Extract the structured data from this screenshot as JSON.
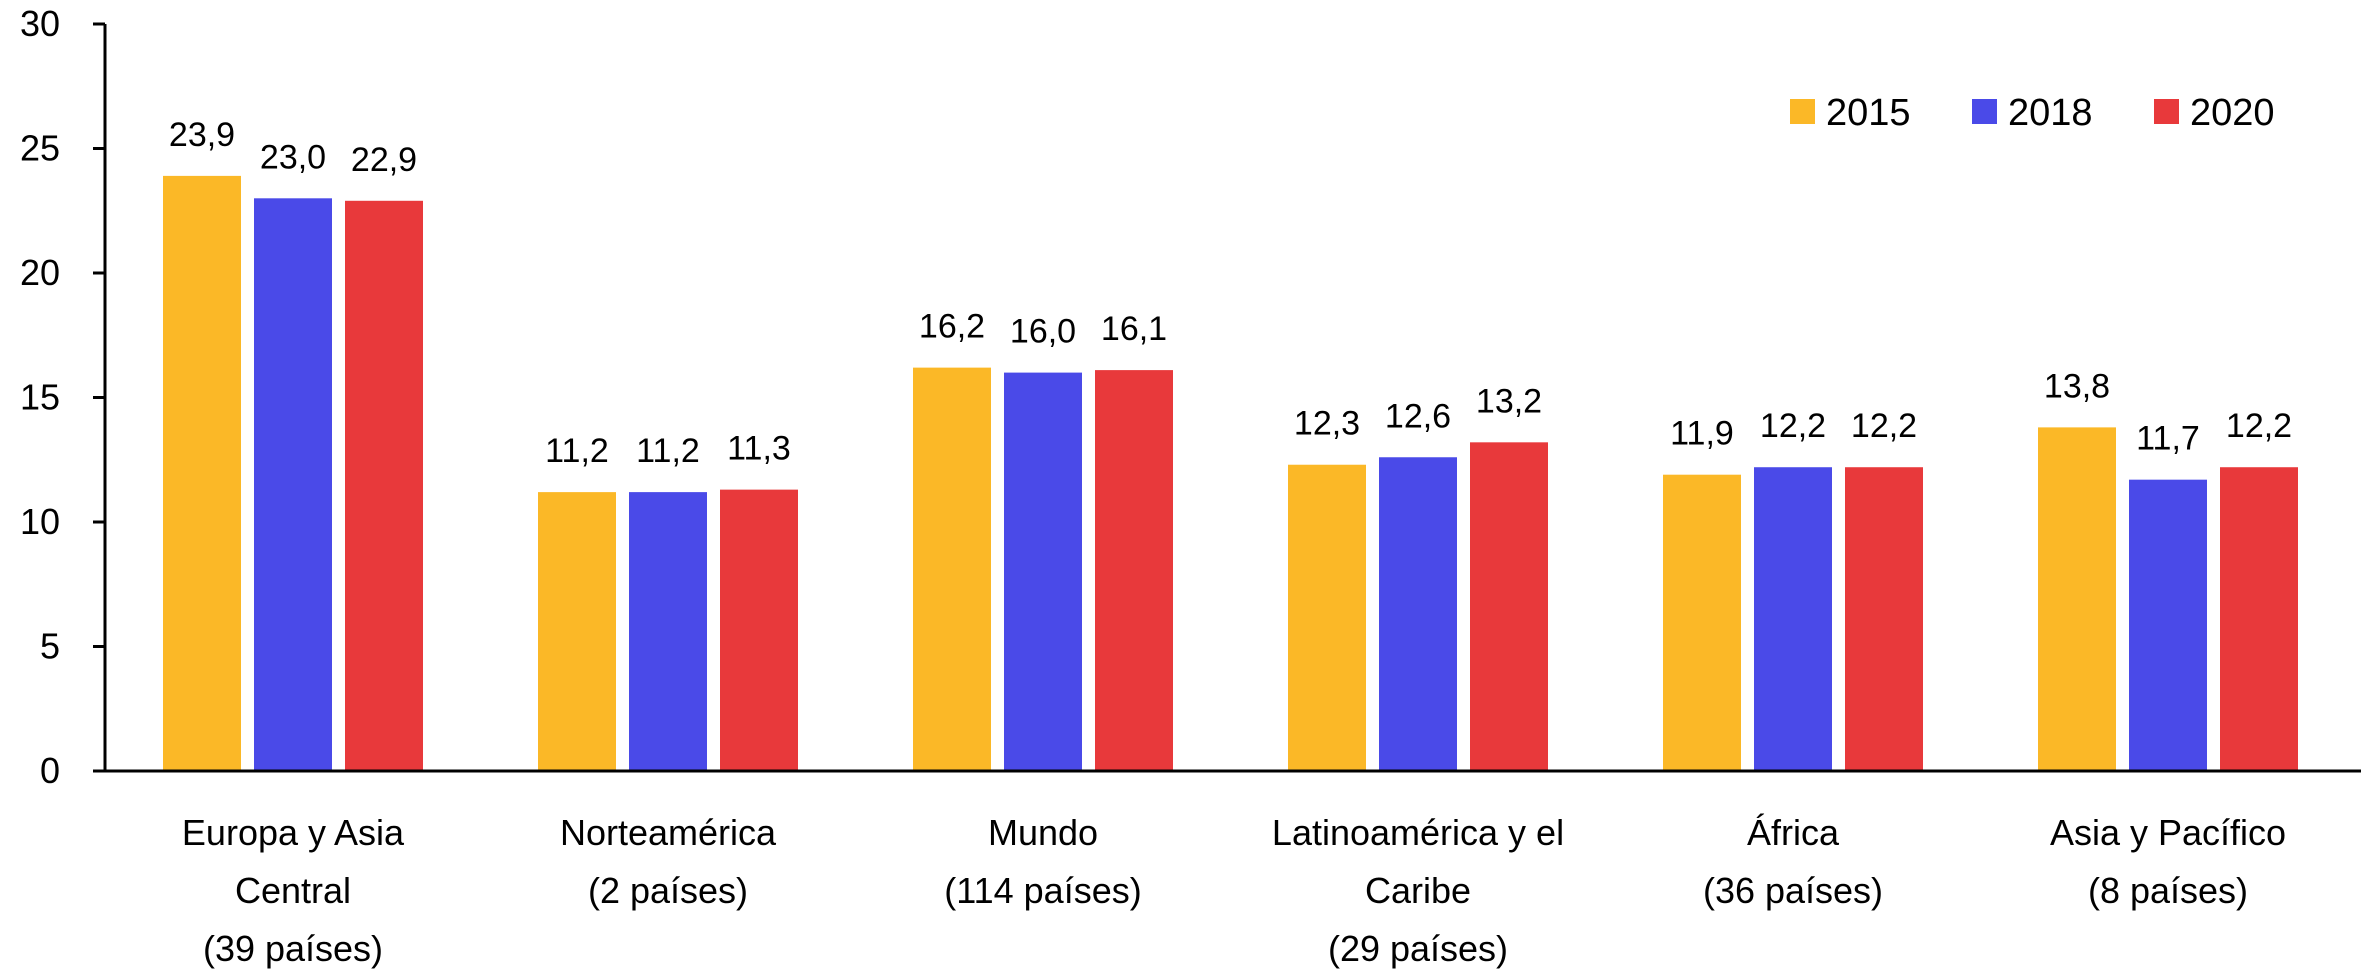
{
  "chart_data": {
    "type": "bar",
    "title": "",
    "xlabel": "",
    "ylabel": "",
    "ylim": [
      0,
      30
    ],
    "yticks": [
      0,
      5,
      10,
      15,
      20,
      25,
      30
    ],
    "grid": false,
    "legend_position": "top-right",
    "categories": [
      [
        "Europa y Asia",
        "Central",
        "(39 países)"
      ],
      [
        "Norteamérica",
        "(2 países)"
      ],
      [
        "Mundo",
        "(114 países)"
      ],
      [
        "Latinoamérica y el",
        "Caribe",
        "(29 países)"
      ],
      [
        "África",
        "(36 países)"
      ],
      [
        "Asia y Pacífico",
        "(8 países)"
      ]
    ],
    "series": [
      {
        "name": "2015",
        "color": "#FBB827",
        "values": [
          23.9,
          11.2,
          16.2,
          12.3,
          11.9,
          13.8
        ],
        "labels": [
          "23,9",
          "11,2",
          "16,2",
          "12,3",
          "11,9",
          "13,8"
        ]
      },
      {
        "name": "2018",
        "color": "#4A4AE8",
        "values": [
          23.0,
          11.2,
          16.0,
          12.6,
          12.2,
          11.7
        ],
        "labels": [
          "23,0",
          "11,2",
          "16,0",
          "12,6",
          "12,2",
          "11,7"
        ]
      },
      {
        "name": "2020",
        "color": "#E8393B",
        "values": [
          22.9,
          11.3,
          16.1,
          13.2,
          12.2,
          12.2
        ],
        "labels": [
          "22,9",
          "11,3",
          "16,1",
          "13,2",
          "12,2",
          "12,2"
        ]
      }
    ]
  }
}
